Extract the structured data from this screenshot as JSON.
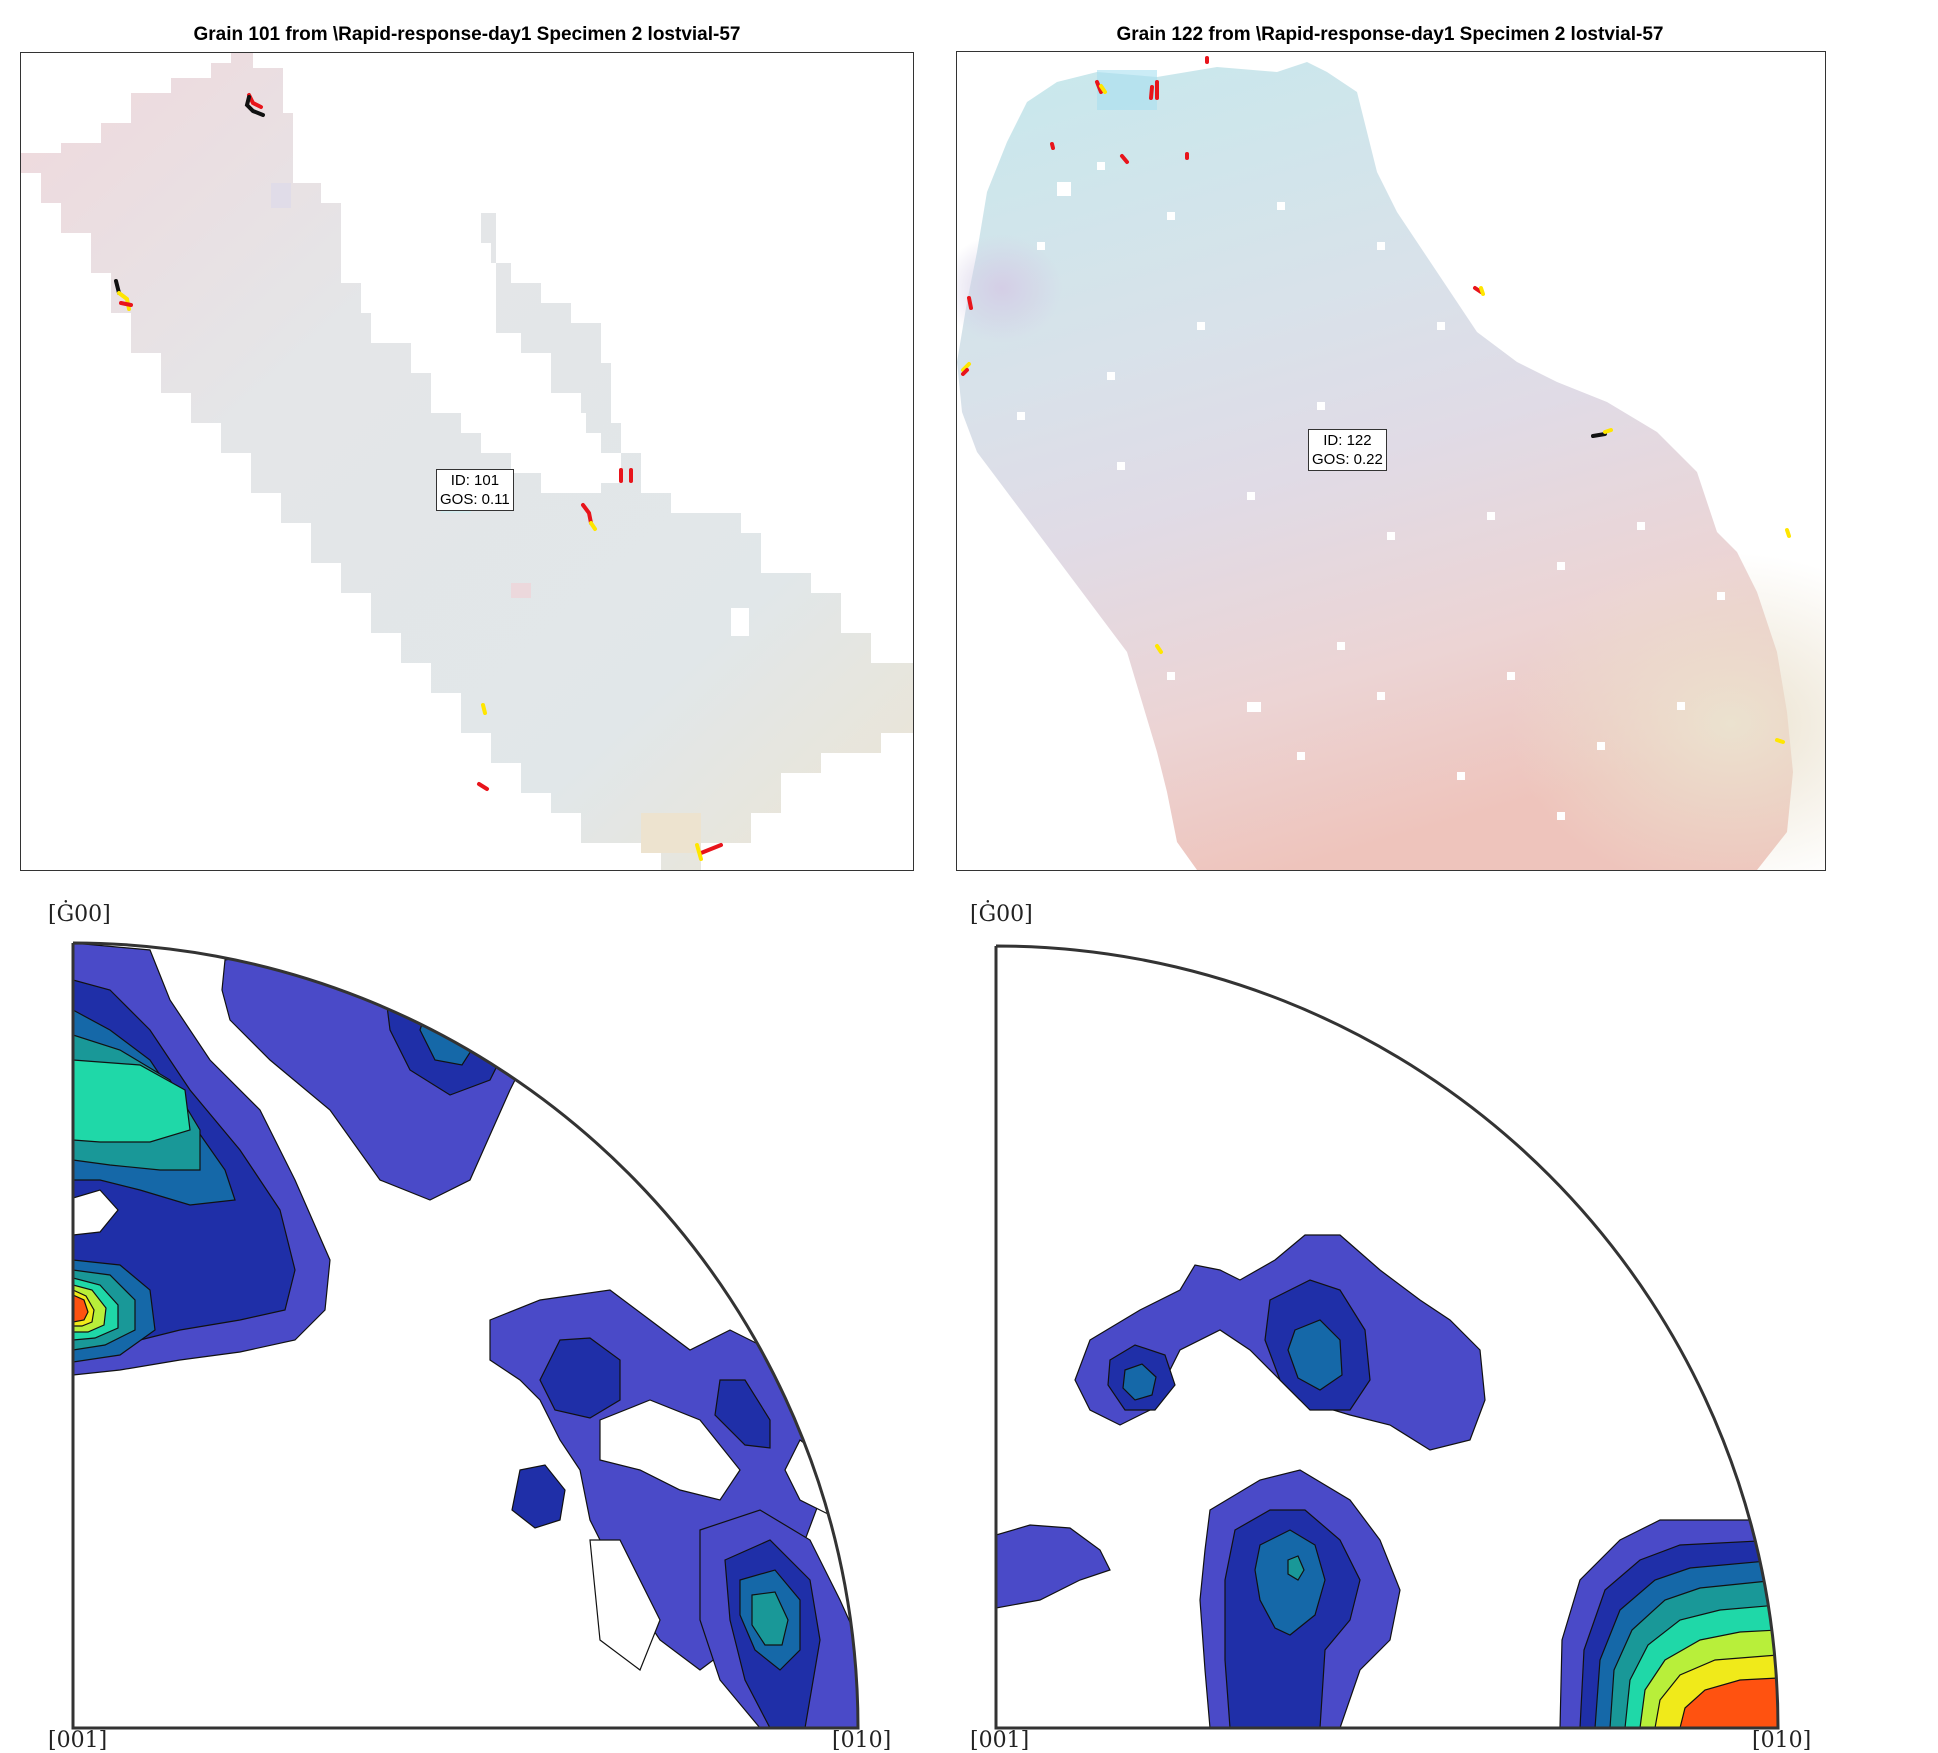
{
  "maps": [
    {
      "title": "Grain 101 from \\Rapid-response-day1 Specimen 2 lostvial-57",
      "id_text": "ID: 101",
      "gos_text": "GOS: 0.11"
    },
    {
      "title": "Grain 122 from \\Rapid-response-day1 Specimen 2 lostvial-57",
      "id_text": "ID: 122",
      "gos_text": "GOS: 0.22"
    }
  ],
  "pole_figures": [
    {
      "top_label": "[Ġ00]",
      "bottom_left_label": "[001]",
      "bottom_right_label": "[010]"
    },
    {
      "top_label": "[Ġ00]",
      "bottom_left_label": "[001]",
      "bottom_right_label": "[010]"
    }
  ],
  "colors": {
    "boundary_high": "#e8141b",
    "boundary_low": "#111111",
    "boundary_twin": "#ffe600",
    "contour_1": "#4a4ac8",
    "contour_2": "#1f2fa8",
    "contour_3": "#1568a8",
    "contour_4": "#199898",
    "contour_5": "#1fd8a8",
    "contour_6": "#b8ef3a",
    "contour_7": "#f0ea1a",
    "contour_8": "#ff5210"
  }
}
